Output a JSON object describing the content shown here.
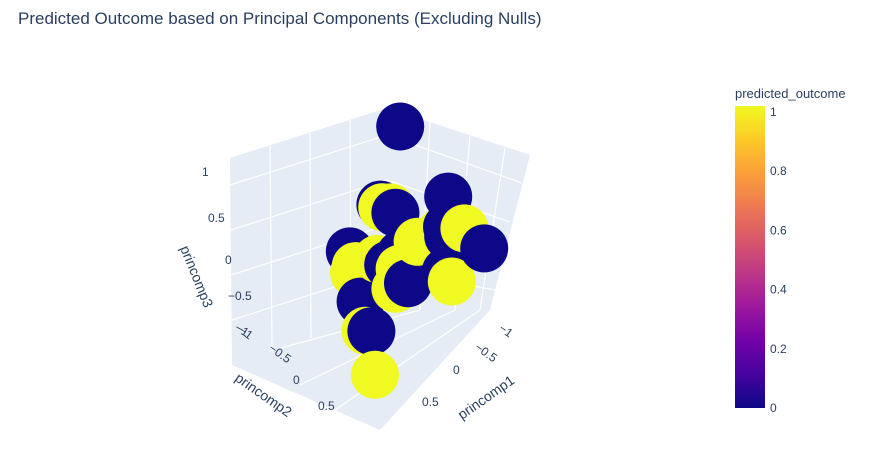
{
  "chart_data": {
    "type": "scatter",
    "title": "Predicted Outcome based on Principal Components (Excluding Nulls)",
    "axes": {
      "x": {
        "title": "princomp1",
        "ticks": [
          "−1",
          "−0.5",
          "0",
          "0.5"
        ],
        "range": [
          -1,
          0.8
        ]
      },
      "y": {
        "title": "princomp2",
        "ticks": [
          "−1",
          "−0.5",
          "0",
          "0.5"
        ],
        "range": [
          -1,
          0.8
        ]
      },
      "z": {
        "title": "princomp3",
        "ticks": [
          "−1",
          "−0.5",
          "0",
          "0.5",
          "1"
        ],
        "range": [
          -1,
          1
        ]
      }
    },
    "colorbar": {
      "title": "predicted_outcome",
      "ticks": [
        "0",
        "0.2",
        "0.4",
        "0.6",
        "0.8",
        "1"
      ],
      "colorscale": [
        "#0d0887",
        "#46039f",
        "#7201a8",
        "#9c179e",
        "#bd3786",
        "#d8576b",
        "#ed7953",
        "#fb9f3a",
        "#fdca26",
        "#f0f921"
      ]
    },
    "points": [
      {
        "x": -0.6,
        "y": -0.5,
        "z": 0.9,
        "outcome": 0
      },
      {
        "x": -0.1,
        "y": -0.2,
        "z": 0.45,
        "outcome": 1
      },
      {
        "x": -0.2,
        "y": -0.1,
        "z": 0.4,
        "outcome": 0
      },
      {
        "x": -0.6,
        "y": 0.3,
        "z": 0.6,
        "outcome": 0
      },
      {
        "x": -0.7,
        "y": 0.45,
        "z": 0.3,
        "outcome": 1
      },
      {
        "x": -0.75,
        "y": 0.1,
        "z": 0.1,
        "outcome": 0
      },
      {
        "x": -0.8,
        "y": -0.05,
        "z": -0.05,
        "outcome": 1
      },
      {
        "x": -0.85,
        "y": 0.0,
        "z": -0.1,
        "outcome": 0
      },
      {
        "x": -0.85,
        "y": 0.6,
        "z": 0.1,
        "outcome": 0
      },
      {
        "x": 0.2,
        "y": 0.75,
        "z": 0.75,
        "outcome": 1
      },
      {
        "x": 0.15,
        "y": 0.4,
        "z": 0.4,
        "outcome": 0
      },
      {
        "x": 0.2,
        "y": 0.45,
        "z": 0.3,
        "outcome": 1
      },
      {
        "x": -0.3,
        "y": -0.3,
        "z": 0.3,
        "outcome": 1
      },
      {
        "x": -0.2,
        "y": -0.35,
        "z": 0.35,
        "outcome": 0
      },
      {
        "x": -0.1,
        "y": -0.1,
        "z": -0.1,
        "outcome": 0
      },
      {
        "x": -0.2,
        "y": -0.4,
        "z": -0.25,
        "outcome": 1
      },
      {
        "x": 0.0,
        "y": 0.35,
        "z": 0.0,
        "outcome": 0
      },
      {
        "x": 0.35,
        "y": -0.2,
        "z": 0.2,
        "outcome": 0
      },
      {
        "x": 0.35,
        "y": -0.1,
        "z": 0.1,
        "outcome": 1
      },
      {
        "x": 0.25,
        "y": -0.25,
        "z": -0.1,
        "outcome": 1
      },
      {
        "x": -0.2,
        "y": -0.1,
        "z": -0.4,
        "outcome": 1
      },
      {
        "x": 0.3,
        "y": 0.0,
        "z": -0.55,
        "outcome": 1
      },
      {
        "x": -0.9,
        "y": -0.1,
        "z": -0.55,
        "outcome": 0
      },
      {
        "x": -0.9,
        "y": 0.0,
        "z": -0.6,
        "outcome": 1
      },
      {
        "x": 0.3,
        "y": 0.1,
        "z": -0.5,
        "outcome": 0
      },
      {
        "x": 0.5,
        "y": 0.4,
        "z": -0.7,
        "outcome": 1
      },
      {
        "x": 0.2,
        "y": -0.2,
        "z": -0.4,
        "outcome": 0
      }
    ]
  }
}
